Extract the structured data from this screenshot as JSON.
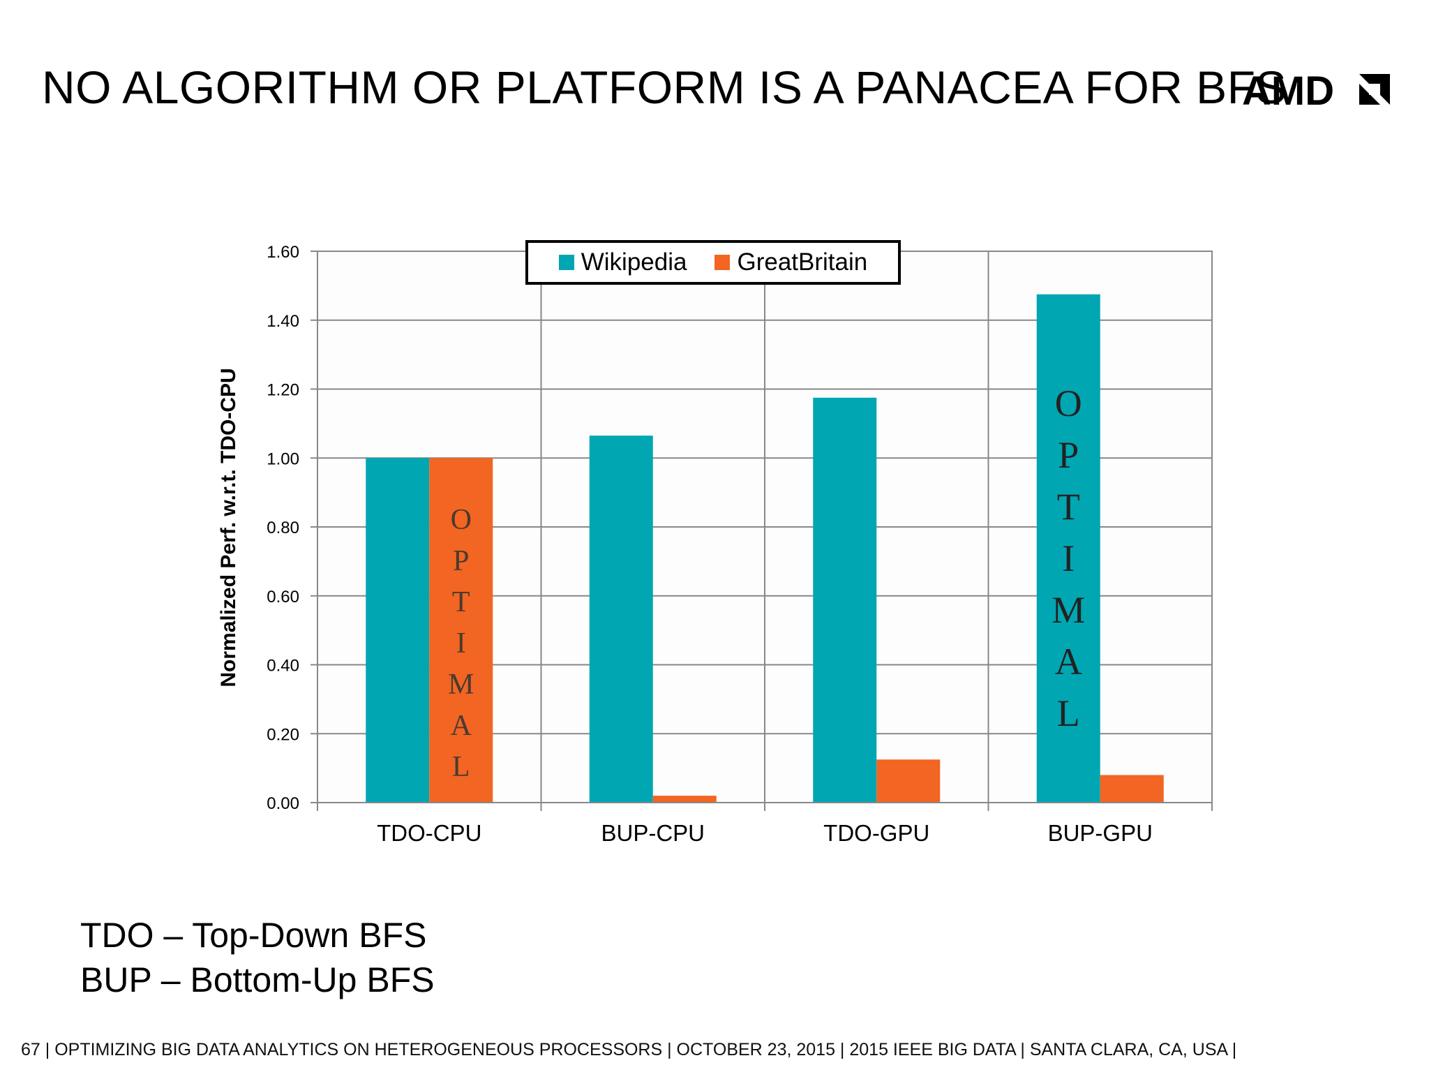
{
  "slide": {
    "title": "NO ALGORITHM OR PLATFORM IS A PANACEA FOR BFS",
    "logo_text": "AMD"
  },
  "chart_data": {
    "type": "bar",
    "title": "",
    "xlabel": "",
    "ylabel": "Normalized Perf. w.r.t. TDO-CPU",
    "categories": [
      "TDO-CPU",
      "BUP-CPU",
      "TDO-GPU",
      "BUP-GPU"
    ],
    "series": [
      {
        "name": "Wikipedia",
        "color": "#00A6B2",
        "values": [
          1.0,
          1.065,
          1.175,
          1.475
        ]
      },
      {
        "name": "GreatBritain",
        "color": "#F26522",
        "values": [
          1.0,
          0.02,
          0.125,
          0.08
        ]
      }
    ],
    "ylim": [
      0,
      1.6
    ],
    "yticks": [
      "0.00",
      "0.20",
      "0.40",
      "0.60",
      "0.80",
      "1.00",
      "1.20",
      "1.40",
      "1.60"
    ],
    "ytick_values": [
      0,
      0.2,
      0.4,
      0.6,
      0.8,
      1.0,
      1.2,
      1.4,
      1.6
    ],
    "grid": true,
    "legend_position": "top-center",
    "annotations": [
      {
        "text": "OPTIMAL",
        "category": "TDO-CPU",
        "series": "GreatBritain"
      },
      {
        "text": "OPTIMAL",
        "category": "BUP-GPU",
        "series": "Wikipedia"
      }
    ]
  },
  "notes": [
    "TDO – Top-Down BFS",
    "BUP – Bottom-Up BFS"
  ],
  "footer": "67  |  OPTIMIZING BIG DATA ANALYTICS ON HETEROGENEOUS PROCESSORS   |   OCTOBER 23, 2015   |   2015 IEEE BIG DATA   |   SANTA CLARA, CA, USA   |"
}
